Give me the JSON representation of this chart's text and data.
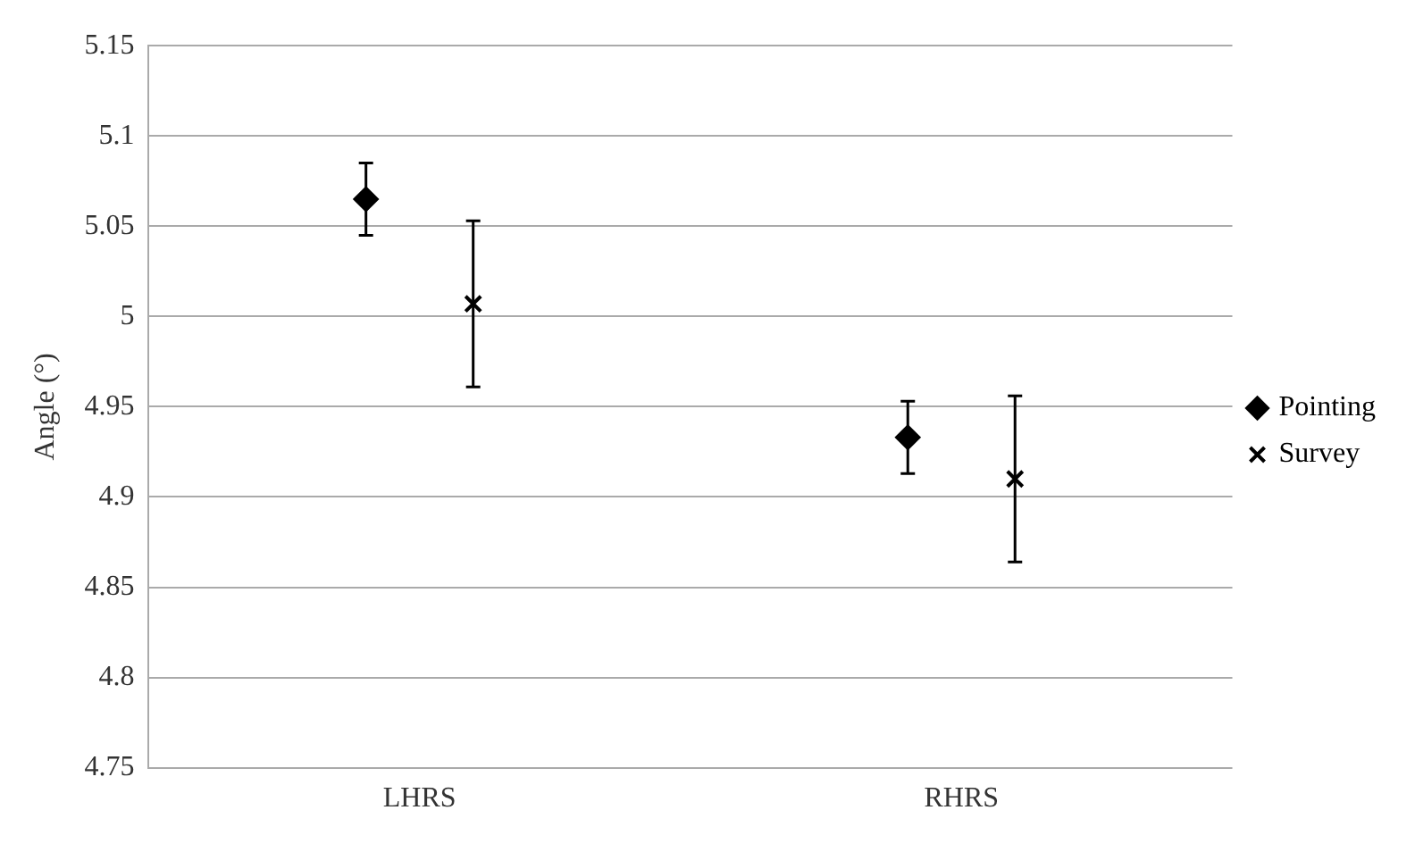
{
  "chart_data": {
    "type": "scatter",
    "ylabel": "Angle (°)",
    "categories": [
      "LHRS",
      "RHRS"
    ],
    "series": [
      {
        "name": "Pointing",
        "color": "#000000",
        "marker": "diamond",
        "values": [
          5.065,
          4.933
        ],
        "errors": [
          0.02,
          0.02
        ]
      },
      {
        "name": "Survey",
        "color": "#000000",
        "marker": "cross",
        "values": [
          5.007,
          4.91
        ],
        "errors": [
          0.046,
          0.046
        ]
      }
    ],
    "ylim": [
      4.75,
      5.15
    ],
    "yticks": [
      4.75,
      4.8,
      4.85,
      4.9,
      4.95,
      5,
      5.05,
      5.1,
      5.15
    ],
    "grid": "y",
    "legend": "right"
  }
}
